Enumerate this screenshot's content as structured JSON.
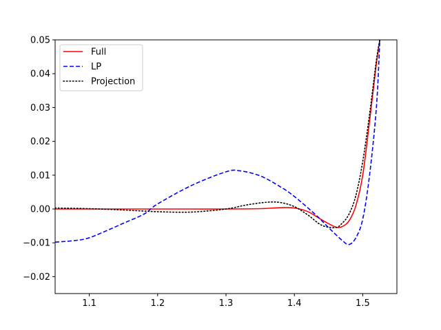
{
  "chart_data": {
    "type": "line",
    "title": "",
    "xlabel": "",
    "ylabel": "",
    "xlim": [
      1.05,
      1.55
    ],
    "ylim": [
      -0.025,
      0.05
    ],
    "grid": false,
    "legend_position": "top-left",
    "x_ticks": [
      {
        "value": 1.1,
        "label": "1.1"
      },
      {
        "value": 1.2,
        "label": "1.2"
      },
      {
        "value": 1.3,
        "label": "1.3"
      },
      {
        "value": 1.4,
        "label": "1.4"
      },
      {
        "value": 1.5,
        "label": "1.5"
      }
    ],
    "y_ticks": [
      {
        "value": -0.02,
        "label": "−0.02"
      },
      {
        "value": -0.01,
        "label": "−0.01"
      },
      {
        "value": 0.0,
        "label": "0.00"
      },
      {
        "value": 0.01,
        "label": "0.01"
      },
      {
        "value": 0.02,
        "label": "0.02"
      },
      {
        "value": 0.03,
        "label": "0.03"
      },
      {
        "value": 0.04,
        "label": "0.04"
      },
      {
        "value": 0.05,
        "label": "0.05"
      }
    ],
    "series": [
      {
        "name": "Full",
        "color": "#ff0000",
        "style": "solid",
        "x": [
          1.05,
          1.1,
          1.15,
          1.2,
          1.25,
          1.3,
          1.35,
          1.38,
          1.4,
          1.42,
          1.44,
          1.46,
          1.47,
          1.48,
          1.49,
          1.5,
          1.51,
          1.52,
          1.525
        ],
        "y": [
          0.0,
          0.0,
          0.0,
          0.0,
          0.0,
          0.0,
          0.0001,
          0.0004,
          0.0003,
          -0.0008,
          -0.0032,
          -0.0053,
          -0.0052,
          -0.0035,
          0.001,
          0.01,
          0.026,
          0.043,
          0.05
        ]
      },
      {
        "name": "LP",
        "color": "#0000ff",
        "style": "dashed",
        "x": [
          1.05,
          1.08,
          1.1,
          1.13,
          1.15,
          1.18,
          1.2,
          1.25,
          1.3,
          1.32,
          1.35,
          1.38,
          1.4,
          1.43,
          1.45,
          1.47,
          1.48,
          1.49,
          1.5,
          1.51,
          1.52,
          1.525
        ],
        "y": [
          -0.0098,
          -0.0093,
          -0.0085,
          -0.006,
          -0.0042,
          -0.0015,
          0.0015,
          0.007,
          0.011,
          0.0113,
          0.0098,
          0.0065,
          0.0037,
          -0.0015,
          -0.0055,
          -0.0093,
          -0.0105,
          -0.0085,
          -0.003,
          0.01,
          0.03,
          0.05
        ]
      },
      {
        "name": "Projection",
        "color": "#000000",
        "style": "dotted",
        "x": [
          1.05,
          1.1,
          1.15,
          1.2,
          1.25,
          1.3,
          1.33,
          1.36,
          1.38,
          1.4,
          1.42,
          1.44,
          1.46,
          1.47,
          1.48,
          1.49,
          1.5,
          1.51,
          1.52,
          1.525
        ],
        "y": [
          0.0003,
          0.0001,
          -0.0003,
          -0.0008,
          -0.0009,
          0.0,
          0.0012,
          0.002,
          0.0019,
          0.0007,
          -0.0018,
          -0.0048,
          -0.0055,
          -0.0042,
          -0.0015,
          0.004,
          0.014,
          0.028,
          0.044,
          0.05
        ]
      }
    ]
  }
}
